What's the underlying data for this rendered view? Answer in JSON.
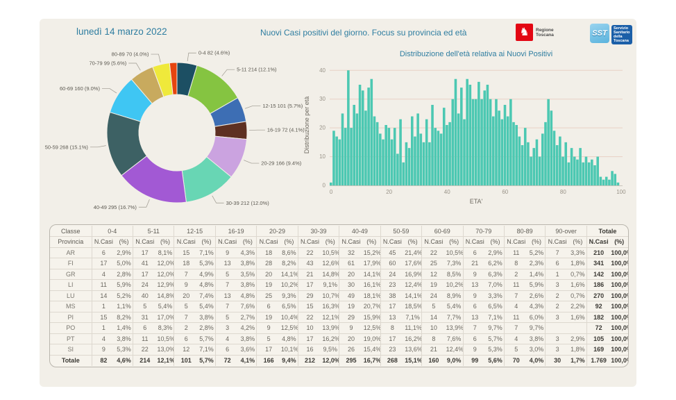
{
  "header": {
    "date": "lunedì 14 marzo 2022",
    "title": "Nuovi Casi positivi del giorno. Focus su provincia ed età",
    "logos": {
      "regione_label": "Regione Toscana",
      "sst_acronym": "SST",
      "sst_label_lines": [
        "Servizio",
        "Sanitario",
        "della",
        "Toscana"
      ]
    }
  },
  "colors": {
    "background": "#f2efe8",
    "title_text": "#2e7da0",
    "bar_fill": "#4cc8b2",
    "gridline": "#e8d0c4",
    "axis_text": "#999388",
    "pie_label_text": "#5b5850"
  },
  "chart_data": [
    {
      "type": "pie",
      "subtype": "donut",
      "title": "",
      "categories": [
        "0-4",
        "5-11",
        "12-15",
        "16-19",
        "20-29",
        "30-39",
        "40-49",
        "50-59",
        "60-69",
        "70-79",
        "80-89",
        "90-over"
      ],
      "values": [
        82,
        214,
        101,
        72,
        166,
        212,
        295,
        268,
        160,
        99,
        70,
        30
      ],
      "percents": [
        4.6,
        12.1,
        5.7,
        4.1,
        9.4,
        12.0,
        16.7,
        15.1,
        9.0,
        5.6,
        4.0,
        1.7
      ],
      "labels": [
        "0-4 82 (4.6%)",
        "5-11 214 (12.1%)",
        "12-15 101 (5.7%)",
        "16-19 72 (4.1%)",
        "20-29 166 (9.4%)",
        "30-39 212 (12.0%)",
        "40-49 295 (16.7%)",
        "50-59 268 (15.1%)",
        "60-69 160 (9.0%)",
        "70-79 99 (5.6%)",
        "80-89 70 (4.0%)",
        null
      ],
      "colors": [
        "#1c4f63",
        "#85c441",
        "#3d6eb4",
        "#5e3022",
        "#cba3e0",
        "#68d6b4",
        "#a259d4",
        "#3d6164",
        "#3fc6f3",
        "#c8aa5e",
        "#efe93b",
        "#e6450f"
      ],
      "legend_position": "none"
    },
    {
      "type": "bar",
      "title": "Distribuzione dell'età relativa ai Nuovi Positivi",
      "xlabel": "ETA'",
      "ylabel": "Distribuzione per età",
      "x_start": 0,
      "x_ticks": [
        0,
        20,
        40,
        60,
        80,
        100
      ],
      "y_ticks": [
        0,
        10,
        20,
        30,
        40
      ],
      "ylim": [
        0,
        42
      ],
      "grid": "horizontal",
      "values": [
        1,
        19,
        17,
        16,
        25,
        20,
        40,
        20,
        28,
        25,
        35,
        33,
        26,
        34,
        37,
        24,
        22,
        18,
        16,
        21,
        20,
        16,
        20,
        11,
        23,
        8,
        15,
        13,
        24,
        17,
        25,
        18,
        15,
        23,
        15,
        28,
        20,
        19,
        18,
        27,
        21,
        22,
        30,
        37,
        25,
        34,
        23,
        37,
        35,
        30,
        30,
        36,
        30,
        33,
        35,
        30,
        24,
        30,
        26,
        23,
        28,
        24,
        30,
        22,
        21,
        17,
        14,
        20,
        15,
        10,
        13,
        16,
        10,
        18,
        22,
        30,
        26,
        19,
        14,
        17,
        10,
        15,
        8,
        13,
        10,
        9,
        13,
        8,
        10,
        8,
        9,
        7,
        10,
        3,
        2,
        3,
        2,
        5,
        4,
        1,
        0
      ]
    }
  ],
  "table": {
    "corner_top": "Classe",
    "corner_bottom": "Provincia",
    "group_headers": [
      "0-4",
      "5-11",
      "12-15",
      "16-19",
      "20-29",
      "30-39",
      "40-49",
      "50-59",
      "60-69",
      "70-79",
      "80-89",
      "90-over",
      "Totale"
    ],
    "sub_headers": [
      "N.Casi",
      "(%)"
    ],
    "rows": [
      {
        "provincia": "AR",
        "cells": [
          "6",
          "2,9%",
          "17",
          "8,1%",
          "15",
          "7,1%",
          "9",
          "4,3%",
          "18",
          "8,6%",
          "22",
          "10,5%",
          "32",
          "15,2%",
          "45",
          "21,4%",
          "22",
          "10,5%",
          "6",
          "2,9%",
          "11",
          "5,2%",
          "7",
          "3,3%",
          "210",
          "100,0%"
        ]
      },
      {
        "provincia": "FI",
        "cells": [
          "17",
          "5,0%",
          "41",
          "12,0%",
          "18",
          "5,3%",
          "13",
          "3,8%",
          "28",
          "8,2%",
          "43",
          "12,6%",
          "61",
          "17,9%",
          "60",
          "17,6%",
          "25",
          "7,3%",
          "21",
          "6,2%",
          "8",
          "2,3%",
          "6",
          "1,8%",
          "341",
          "100,0%"
        ]
      },
      {
        "provincia": "GR",
        "cells": [
          "4",
          "2,8%",
          "17",
          "12,0%",
          "7",
          "4,9%",
          "5",
          "3,5%",
          "20",
          "14,1%",
          "21",
          "14,8%",
          "20",
          "14,1%",
          "24",
          "16,9%",
          "12",
          "8,5%",
          "9",
          "6,3%",
          "2",
          "1,4%",
          "1",
          "0,7%",
          "142",
          "100,0%"
        ]
      },
      {
        "provincia": "LI",
        "cells": [
          "11",
          "5,9%",
          "24",
          "12,9%",
          "9",
          "4,8%",
          "7",
          "3,8%",
          "19",
          "10,2%",
          "17",
          "9,1%",
          "30",
          "16,1%",
          "23",
          "12,4%",
          "19",
          "10,2%",
          "13",
          "7,0%",
          "11",
          "5,9%",
          "3",
          "1,6%",
          "186",
          "100,0%"
        ]
      },
      {
        "provincia": "LU",
        "cells": [
          "14",
          "5,2%",
          "40",
          "14,8%",
          "20",
          "7,4%",
          "13",
          "4,8%",
          "25",
          "9,3%",
          "29",
          "10,7%",
          "49",
          "18,1%",
          "38",
          "14,1%",
          "24",
          "8,9%",
          "9",
          "3,3%",
          "7",
          "2,6%",
          "2",
          "0,7%",
          "270",
          "100,0%"
        ]
      },
      {
        "provincia": "MS",
        "cells": [
          "1",
          "1,1%",
          "5",
          "5,4%",
          "5",
          "5,4%",
          "7",
          "7,6%",
          "6",
          "6,5%",
          "15",
          "16,3%",
          "19",
          "20,7%",
          "17",
          "18,5%",
          "5",
          "5,4%",
          "6",
          "6,5%",
          "4",
          "4,3%",
          "2",
          "2,2%",
          "92",
          "100,0%"
        ]
      },
      {
        "provincia": "PI",
        "cells": [
          "15",
          "8,2%",
          "31",
          "17,0%",
          "7",
          "3,8%",
          "5",
          "2,7%",
          "19",
          "10,4%",
          "22",
          "12,1%",
          "29",
          "15,9%",
          "13",
          "7,1%",
          "14",
          "7,7%",
          "13",
          "7,1%",
          "11",
          "6,0%",
          "3",
          "1,6%",
          "182",
          "100,0%"
        ]
      },
      {
        "provincia": "PO",
        "cells": [
          "1",
          "1,4%",
          "6",
          "8,3%",
          "2",
          "2,8%",
          "3",
          "4,2%",
          "9",
          "12,5%",
          "10",
          "13,9%",
          "9",
          "12,5%",
          "8",
          "11,1%",
          "10",
          "13,9%",
          "7",
          "9,7%",
          "7",
          "9,7%",
          "",
          "",
          "72",
          "100,0%"
        ]
      },
      {
        "provincia": "PT",
        "cells": [
          "4",
          "3,8%",
          "11",
          "10,5%",
          "6",
          "5,7%",
          "4",
          "3,8%",
          "5",
          "4,8%",
          "17",
          "16,2%",
          "20",
          "19,0%",
          "17",
          "16,2%",
          "8",
          "7,6%",
          "6",
          "5,7%",
          "4",
          "3,8%",
          "3",
          "2,9%",
          "105",
          "100,0%"
        ]
      },
      {
        "provincia": "SI",
        "cells": [
          "9",
          "5,3%",
          "22",
          "13,0%",
          "12",
          "7,1%",
          "6",
          "3,6%",
          "17",
          "10,1%",
          "16",
          "9,5%",
          "26",
          "15,4%",
          "23",
          "13,6%",
          "21",
          "12,4%",
          "9",
          "5,3%",
          "5",
          "3,0%",
          "3",
          "1,8%",
          "169",
          "100,0%"
        ]
      }
    ],
    "total_row": {
      "provincia": "Totale",
      "cells": [
        "82",
        "4,6%",
        "214",
        "12,1%",
        "101",
        "5,7%",
        "72",
        "4,1%",
        "166",
        "9,4%",
        "212",
        "12,0%",
        "295",
        "16,7%",
        "268",
        "15,1%",
        "160",
        "9,0%",
        "99",
        "5,6%",
        "70",
        "4,0%",
        "30",
        "1,7%",
        "1.769",
        "100,0%"
      ]
    }
  }
}
